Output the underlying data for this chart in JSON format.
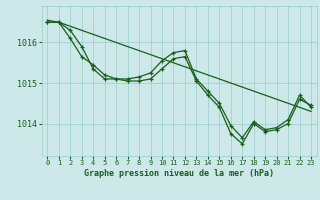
{
  "title": "Graphe pression niveau de la mer (hPa)",
  "background_color": "#cce8e8",
  "grid_color": "#99cccc",
  "line_color": "#1a5e1a",
  "xlim": [
    -0.5,
    23.5
  ],
  "ylim": [
    1013.2,
    1016.9
  ],
  "yticks": [
    1014,
    1015,
    1016
  ],
  "xticks": [
    0,
    1,
    2,
    3,
    4,
    5,
    6,
    7,
    8,
    9,
    10,
    11,
    12,
    13,
    14,
    15,
    16,
    17,
    18,
    19,
    20,
    21,
    22,
    23
  ],
  "series1": [
    1016.5,
    1016.5,
    1016.3,
    1015.9,
    1015.35,
    1015.1,
    1015.1,
    1015.05,
    1015.05,
    1015.1,
    1015.35,
    1015.6,
    1015.65,
    1015.05,
    1014.7,
    1014.4,
    1013.75,
    1013.5,
    1014.0,
    1013.8,
    1013.85,
    1014.0,
    1014.6,
    1014.45
  ],
  "series2": [
    1016.5,
    1016.5,
    1016.1,
    1015.65,
    1015.45,
    1015.2,
    1015.1,
    1015.1,
    1015.15,
    1015.25,
    1015.55,
    1015.75,
    1015.8,
    1015.1,
    1014.8,
    1014.5,
    1013.95,
    1013.65,
    1014.05,
    1013.85,
    1013.9,
    1014.1,
    1014.7,
    1014.4
  ],
  "series3": [
    1016.55,
    1016.5,
    1016.4,
    1016.3,
    1016.2,
    1016.1,
    1016.0,
    1015.9,
    1015.8,
    1015.7,
    1015.6,
    1015.5,
    1015.4,
    1015.3,
    1015.2,
    1015.1,
    1015.0,
    1014.9,
    1014.8,
    1014.7,
    1014.6,
    1014.5,
    1014.4,
    1014.3
  ]
}
